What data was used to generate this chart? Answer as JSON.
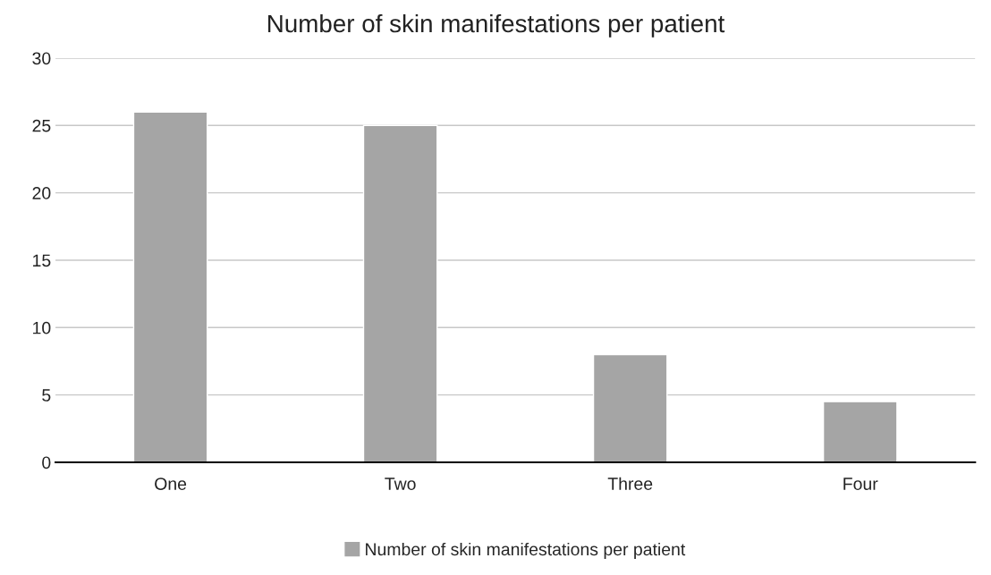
{
  "chart_data": {
    "type": "bar",
    "title": "Number of skin manifestations per patient",
    "categories": [
      "One",
      "Two",
      "Three",
      "Four"
    ],
    "series": [
      {
        "name": "Number of skin manifestations per patient",
        "color": "#a5a5a5",
        "values": [
          26,
          25,
          8,
          4.5
        ]
      }
    ],
    "ylim": [
      0,
      30
    ],
    "yticks": [
      0,
      5,
      10,
      15,
      20,
      25,
      30
    ],
    "grid": "y",
    "legend": "bottom"
  }
}
